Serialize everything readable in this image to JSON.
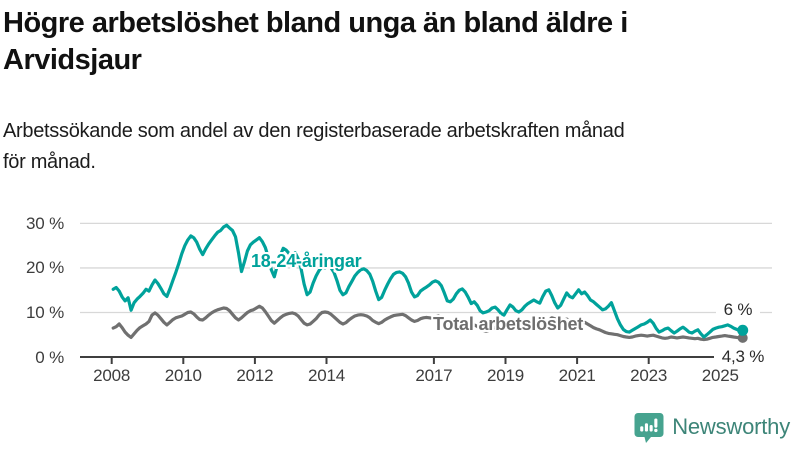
{
  "header": {
    "title_lines": [
      "Högre arbetslöshet bland unga än bland äldre i",
      "Arvidsjaur"
    ],
    "subtitle_lines": [
      "Arbetssökande som andel av den registerbaserade arbetskraften månad",
      "för månad."
    ]
  },
  "chart_data": {
    "type": "line",
    "title": "Högre arbetslöshet bland unga än bland äldre i Arvidsjaur",
    "subtitle": "Arbetssökande som andel av den registerbaserade arbetskraften månad för månad.",
    "unit": "%",
    "frequency": "monthly",
    "x_start_year": 2008,
    "x_end": "2025-08",
    "ylim": [
      0,
      32
    ],
    "grid": "horizontal",
    "legend_position": "inline-labels",
    "y_ticks": [
      {
        "value": 0,
        "label": "0 %"
      },
      {
        "value": 10,
        "label": "10 %"
      },
      {
        "value": 20,
        "label": "20 %"
      },
      {
        "value": 30,
        "label": "30 %"
      }
    ],
    "x_ticks": [
      {
        "year": 2008,
        "label": "2008"
      },
      {
        "year": 2010,
        "label": "2010"
      },
      {
        "year": 2012,
        "label": "2012"
      },
      {
        "year": 2014,
        "label": "2014"
      },
      {
        "year": 2017,
        "label": "2017"
      },
      {
        "year": 2019,
        "label": "2019"
      },
      {
        "year": 2021,
        "label": "2021"
      },
      {
        "year": 2023,
        "label": "2023"
      },
      {
        "year": 2025,
        "label": "2025"
      }
    ],
    "series": [
      {
        "name": "18-24-åringar",
        "color": "#00a29b",
        "end_label": "6 %",
        "end_value": 6.0,
        "values": [
          15.2,
          15.6,
          14.8,
          13.5,
          12.6,
          13.3,
          10.5,
          12.2,
          13.0,
          13.6,
          14.3,
          15.2,
          14.8,
          16.2,
          17.3,
          16.5,
          15.4,
          14.2,
          13.6,
          15.3,
          17.2,
          19.0,
          21.0,
          23.2,
          25.0,
          26.3,
          27.2,
          26.8,
          25.8,
          24.2,
          23.0,
          24.3,
          25.4,
          26.3,
          27.2,
          28.0,
          28.4,
          29.2,
          29.6,
          29.0,
          28.4,
          27.0,
          23.4,
          19.2,
          21.4,
          23.8,
          25.2,
          25.8,
          26.3,
          26.8,
          25.9,
          24.6,
          22.4,
          19.6,
          18.0,
          20.6,
          22.8,
          24.4,
          24.0,
          23.2,
          22.6,
          23.4,
          22.0,
          19.8,
          16.4,
          14.0,
          14.6,
          16.6,
          18.2,
          19.4,
          20.2,
          20.0,
          20.4,
          20.0,
          19.0,
          17.2,
          15.0,
          14.0,
          14.4,
          15.8,
          17.0,
          18.2,
          19.0,
          19.6,
          19.8,
          19.4,
          18.6,
          17.0,
          14.8,
          12.9,
          13.4,
          15.0,
          16.4,
          17.6,
          18.6,
          19.0,
          19.1,
          18.8,
          18.0,
          16.6,
          14.6,
          13.5,
          13.8,
          14.8,
          15.3,
          15.7,
          16.2,
          16.8,
          17.1,
          16.8,
          16.0,
          14.4,
          12.6,
          12.4,
          13.0,
          14.2,
          15.0,
          15.3,
          14.6,
          13.4,
          12.0,
          12.4,
          11.6,
          10.4,
          9.9,
          10.1,
          10.4,
          11.0,
          11.2,
          10.6,
          9.8,
          9.4,
          10.6,
          11.7,
          11.2,
          10.4,
          10.1,
          10.6,
          11.4,
          12.0,
          12.4,
          12.8,
          12.4,
          12.1,
          13.6,
          14.8,
          15.1,
          13.8,
          12.2,
          11.0,
          11.6,
          13.0,
          14.4,
          13.6,
          13.3,
          14.2,
          15.1,
          14.2,
          14.6,
          13.8,
          12.8,
          12.4,
          11.8,
          11.2,
          10.6,
          10.8,
          11.4,
          12.2,
          10.4,
          8.6,
          7.2,
          6.2,
          5.7,
          5.6,
          6.0,
          6.4,
          6.8,
          7.2,
          7.4,
          7.8,
          8.3,
          7.6,
          6.4,
          5.6,
          5.9,
          6.3,
          6.5,
          5.9,
          5.4,
          5.8,
          6.3,
          6.7,
          6.2,
          5.6,
          5.4,
          5.8,
          6.1,
          5.2,
          4.5,
          5.0,
          5.6,
          6.2,
          6.5,
          6.7,
          6.8,
          7.0,
          7.2,
          6.9,
          6.5,
          6.2,
          5.9,
          6.0
        ]
      },
      {
        "name": "Total arbetslöshet",
        "color": "#707070",
        "end_label": "4,3 %",
        "end_value": 4.3,
        "values": [
          6.5,
          6.8,
          7.4,
          6.6,
          5.6,
          4.9,
          4.4,
          5.2,
          6.0,
          6.6,
          7.0,
          7.4,
          8.0,
          9.4,
          9.9,
          9.4,
          8.6,
          7.8,
          7.2,
          7.8,
          8.4,
          8.8,
          9.0,
          9.2,
          9.6,
          10.0,
          10.1,
          9.7,
          9.0,
          8.4,
          8.3,
          8.8,
          9.4,
          9.9,
          10.3,
          10.6,
          10.8,
          11.0,
          10.9,
          10.4,
          9.6,
          8.8,
          8.3,
          8.8,
          9.4,
          10.0,
          10.4,
          10.6,
          11.0,
          11.4,
          11.0,
          10.2,
          9.2,
          8.2,
          7.6,
          8.2,
          8.8,
          9.3,
          9.6,
          9.8,
          9.9,
          9.7,
          9.2,
          8.4,
          7.6,
          7.2,
          7.4,
          8.0,
          8.6,
          9.4,
          10.0,
          10.1,
          10.0,
          9.6,
          9.0,
          8.4,
          7.8,
          7.4,
          7.7,
          8.3,
          8.8,
          9.2,
          9.4,
          9.5,
          9.4,
          9.2,
          8.8,
          8.2,
          7.8,
          7.5,
          7.8,
          8.3,
          8.7,
          9.0,
          9.3,
          9.4,
          9.5,
          9.6,
          9.3,
          8.8,
          8.3,
          8.0,
          8.2,
          8.6,
          8.8,
          8.9,
          8.8,
          8.7,
          9.0,
          9.2,
          8.8,
          8.2,
          7.6,
          7.2,
          7.4,
          7.8,
          8.0,
          7.9,
          7.6,
          7.2,
          7.0,
          7.2,
          6.9,
          6.4,
          6.0,
          5.8,
          6.0,
          6.4,
          6.6,
          6.5,
          6.3,
          6.1,
          6.4,
          6.7,
          6.5,
          6.2,
          6.0,
          6.1,
          6.4,
          6.7,
          6.9,
          7.0,
          6.9,
          6.8,
          7.4,
          7.8,
          8.2,
          8.8,
          8.6,
          8.2,
          8.0,
          8.3,
          8.5,
          8.2,
          7.9,
          7.8,
          7.9,
          8.0,
          7.8,
          7.4,
          7.0,
          6.6,
          6.3,
          6.1,
          5.8,
          5.5,
          5.3,
          5.2,
          5.1,
          5.0,
          4.8,
          4.6,
          4.5,
          4.4,
          4.5,
          4.7,
          4.8,
          4.9,
          4.8,
          4.7,
          4.8,
          4.9,
          4.7,
          4.5,
          4.3,
          4.2,
          4.3,
          4.5,
          4.4,
          4.3,
          4.4,
          4.5,
          4.4,
          4.3,
          4.2,
          4.1,
          4.2,
          4.0,
          3.9,
          4.0,
          4.2,
          4.4,
          4.5,
          4.6,
          4.7,
          4.8,
          4.7,
          4.6,
          4.5,
          4.4,
          4.3,
          4.3
        ]
      }
    ]
  },
  "colors": {
    "accent_teal": "#00a29b",
    "series_gray": "#707070",
    "gridline": "#d8d8d8",
    "axis": "#3f3f3f",
    "tick_text": "#3d3d3d",
    "logo_icon": "#46a38f",
    "logo_text": "#3d8578"
  },
  "logo": {
    "text": "Newsworthy"
  }
}
